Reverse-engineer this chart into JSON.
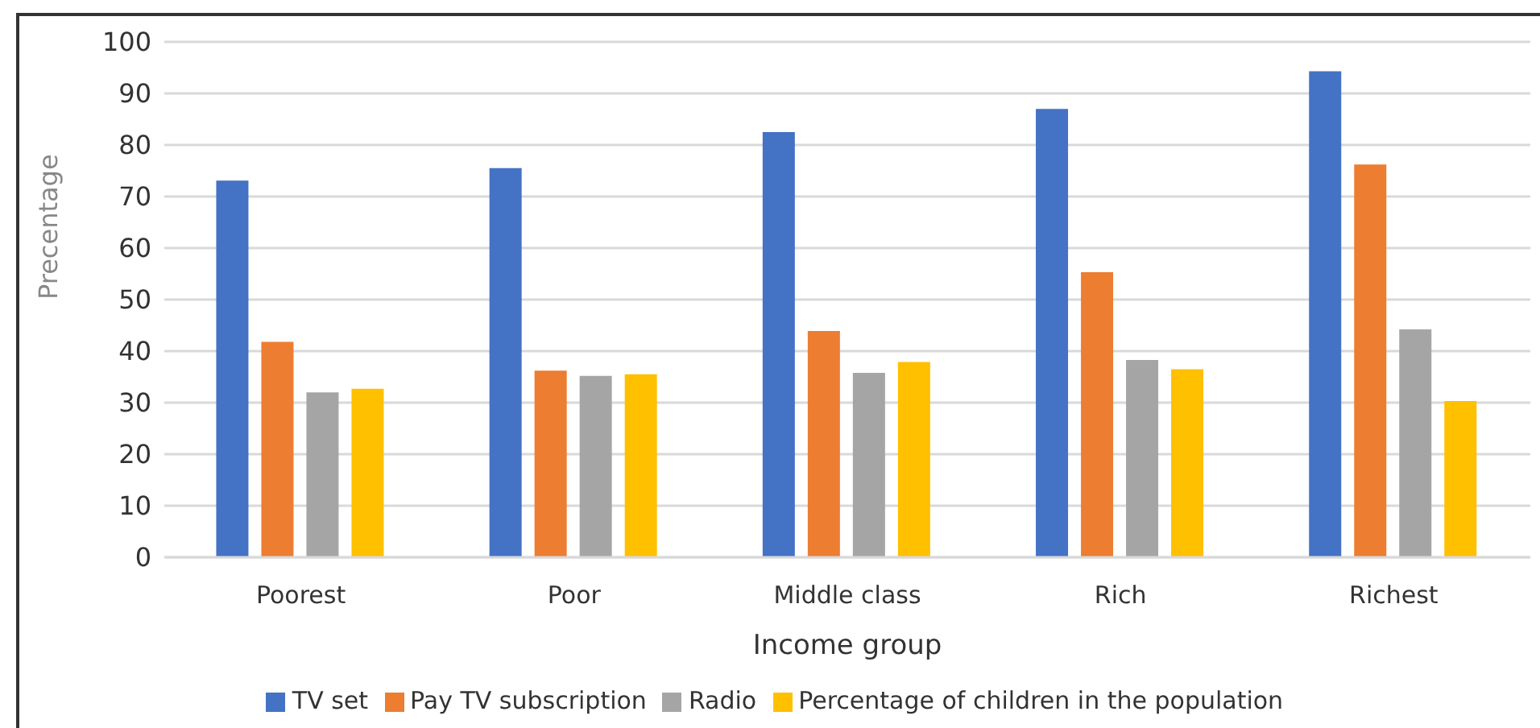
{
  "chart_data": {
    "type": "bar",
    "xlabel": "Income group",
    "ylabel": "Precentage",
    "categories": [
      "Poorest",
      "Poor",
      "Middle class",
      "Rich",
      "Richest"
    ],
    "series": [
      {
        "name": "TV set",
        "color": "#4472c4",
        "values": [
          73.1,
          75.5,
          82.5,
          87.0,
          94.3
        ]
      },
      {
        "name": "Pay TV subscription",
        "color": "#ed7d31",
        "values": [
          41.8,
          36.2,
          43.9,
          55.3,
          76.2
        ]
      },
      {
        "name": "Radio",
        "color": "#a5a5a5",
        "values": [
          32.0,
          35.2,
          35.8,
          38.3,
          44.2
        ]
      },
      {
        "name": "Percentage of children in the population",
        "color": "#ffc000",
        "values": [
          32.7,
          35.5,
          37.9,
          36.5,
          30.3
        ]
      }
    ],
    "ylim": [
      0,
      100
    ],
    "yticks": [
      0,
      10,
      20,
      30,
      40,
      50,
      60,
      70,
      80,
      90,
      100
    ],
    "grid": "y",
    "legend": "bottom"
  }
}
